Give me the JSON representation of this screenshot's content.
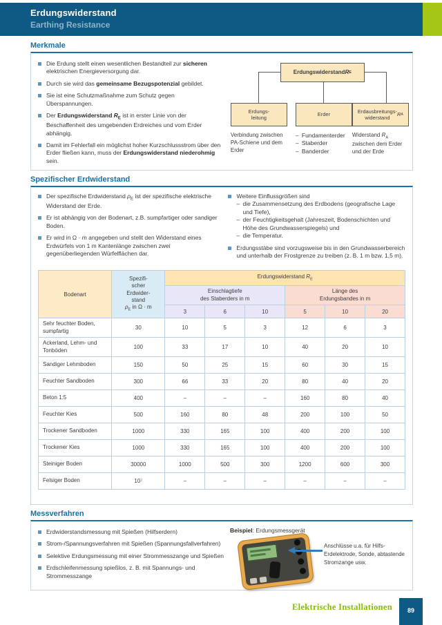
{
  "colors": {
    "header_blue": "#0e5a84",
    "accent_green": "#a4c614",
    "section_blue": "#1272a8",
    "footer_green": "#84bd00",
    "diagram_box_fill": "#fbe7bd",
    "table_header_tan": "#fde4b0",
    "table_header_blue": "#d9ecf5",
    "table_header_lavender": "#e9e7f7",
    "table_header_pink": "#fadcd2"
  },
  "header": {
    "title": "Erdungswiderstand",
    "subtitle": "Earthing Resistance"
  },
  "merkmale": {
    "title": "Merkmale",
    "bullets": [
      "Die Erdung stellt einen wesentlichen Bestandteil zur <b>siche­ren</b> elektrischen Energieversorgung dar.",
      "Durch sie wird das <b>gemeinsame Bezugspotenzial</b> gebildet.",
      "Sie ist eine Schutzmaßnahme zum Schutz gegen Überspannungen.",
      "Der <b>Erdungswiderstand <i>R</i><sub>E</sub></b> ist in erster Linie von der Beschaffenheit des umgebenden Erdreiches und vom Erder abhängig.",
      "Damit im Fehlerfall ein möglichst hoher Kurzschlussstrom über den Erder fließen kann, muss der <b>Erdungswiderstand niederohmig</b> sein."
    ],
    "diagram": {
      "root": "Erdungswiderstand <i>R</i><sub>E</sub>",
      "box1": "Erdungs-<br>leitung",
      "box2": "Erder",
      "box3": "Erdausbreitungs-<br>widerstand <i>R</i><sub>A</sub>",
      "note1": "Verbindung zwischen PA-Schiene und dem Erder",
      "note2_items": [
        "Fundamenterder",
        "Staberder",
        "Banderder"
      ],
      "note3": "Widerstand <i>R</i><sub>A</sub> zwischen dem Erder und der Erde"
    }
  },
  "spez": {
    "title": "Spezifischer Erdwiderstand",
    "bullets_left": [
      "Der spezifische Erdwiderstand <i>ρ</i><sub>E</sub> ist der spezifische elektrische Widerstand der Erde.",
      "Er ist abhängig von der Bodenart, z.B. sumpfartiger oder sandiger Boden.",
      "Er wird in Ω · m angegeben und stellt den Widerstand eines Erdwürfels von 1 m Kantenlänge zwischen zwei gegenüberliegenden Würfelflächen dar."
    ],
    "bullets_right_1": "Weitere Einflussgrößen sind",
    "bullets_right_1_sub": [
      "die Zusammensetzung des Erdbodens (geografische Lage und Tiefe),",
      "der Feuchtigkeitsgehalt (Jahreszeit, Bodenschichten und Höhe des Grundwasserspiegels) und",
      "die Temperatur."
    ],
    "bullets_right_2": "Erdungsstäbe sind vorzugsweise bis in den Grundwasserbereich und unterhalb der Frostgrenze zu treiben (z. B. 1 m bzw. 1,5 m).",
    "table": {
      "col_bodenart": "Bodenart",
      "col_spez_html": "Spezifi-<br>scher<br>Erdwider-<br>stand<br><i>ρ</i><sub>E</sub> in Ω · m",
      "span_re": "Erdungswiderstand <i>R</i><sub>E</sub>",
      "span_depth": "Einschlagtiefe<br>des Staberders in m",
      "span_length": "Länge des<br>Erdungsbandes in m",
      "depth_cols": [
        "3",
        "6",
        "10"
      ],
      "length_cols": [
        "5",
        "10",
        "20"
      ],
      "rows": [
        [
          "Sehr feuchter Boden, sumpfartig",
          "30",
          "10",
          "5",
          "3",
          "12",
          "6",
          "3"
        ],
        [
          "Ackerland, Lehm- und Tonböden",
          "100",
          "33",
          "17",
          "10",
          "40",
          "20",
          "10"
        ],
        [
          "Sandiger Lehmboden",
          "150",
          "50",
          "25",
          "15",
          "60",
          "30",
          "15"
        ],
        [
          "Feuchter Sandboden",
          "300",
          "66",
          "33",
          "20",
          "80",
          "40",
          "20"
        ],
        [
          "Beton 1:5",
          "400",
          "–",
          "–",
          "–",
          "160",
          "80",
          "40"
        ],
        [
          "Feuchter Kies",
          "500",
          "160",
          "80",
          "48",
          "200",
          "100",
          "50"
        ],
        [
          "Trockener Sandboden",
          "1000",
          "330",
          "165",
          "100",
          "400",
          "200",
          "100"
        ],
        [
          "Trockener Kies",
          "1000",
          "330",
          "165",
          "100",
          "400",
          "200",
          "100"
        ],
        [
          "Steiniger Boden",
          "30000",
          "1000",
          "500",
          "300",
          "1200",
          "600",
          "300"
        ],
        [
          "Felsiger Boden",
          "10⁷",
          "–",
          "–",
          "–",
          "–",
          "–",
          "–"
        ]
      ]
    }
  },
  "messverfahren": {
    "title": "Messverfahren",
    "bullets": [
      "Erdwiderstandsmessung mit Spießen (Hilfserdern)",
      "Strom-/Spannungsverfahren mit Spießen (Spannungsfallverfahren)",
      "Selektive Erdungsmessung mit einer Strommesszange und Spießen",
      "Erdschleifenmessung spießlos, z. B. mit Spannungs- und Strommesszange"
    ],
    "beispiel": "<b>Beispiel</b>: Erdungsmessgerät",
    "annotation": "Anschlüsse u.a. für Hilfs-Erdelektrode, Sonde, abtastende Stromzange usw.",
    "device_name": "earth-tester-device"
  },
  "footer": {
    "label": "Elektrische Installationen",
    "page_number": "89"
  }
}
